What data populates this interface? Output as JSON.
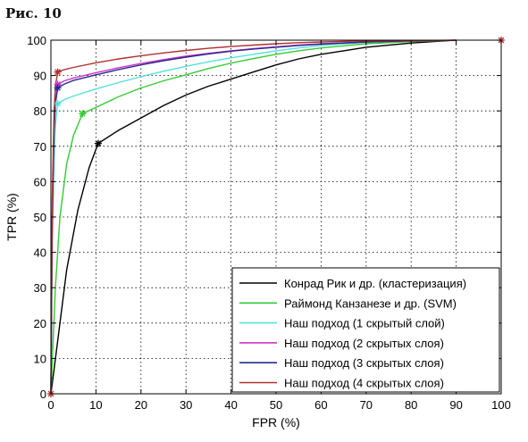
{
  "figure_label": "Рис. 10",
  "chart_data": {
    "type": "line",
    "xlabel": "FPR (%)",
    "ylabel": "TPR (%)",
    "xlim": [
      0,
      100
    ],
    "ylim": [
      0,
      100
    ],
    "xticks": [
      0,
      10,
      20,
      30,
      40,
      50,
      60,
      70,
      80,
      90,
      100
    ],
    "yticks": [
      0,
      10,
      20,
      30,
      40,
      50,
      60,
      70,
      80,
      90,
      100
    ],
    "grid": true,
    "legend_position": "bottom-right",
    "series": [
      {
        "name": "Конрад Рик и др. (кластеризация)",
        "color": "#000000",
        "marker": {
          "x": 10.5,
          "y": 70.8
        },
        "points": [
          [
            0,
            0
          ],
          [
            1.5,
            15
          ],
          [
            3.5,
            35
          ],
          [
            6,
            52
          ],
          [
            8.5,
            64
          ],
          [
            10.5,
            70.8
          ],
          [
            15,
            74.5
          ],
          [
            20,
            78
          ],
          [
            25,
            81.5
          ],
          [
            30,
            84.5
          ],
          [
            35,
            87
          ],
          [
            40,
            89
          ],
          [
            45,
            91
          ],
          [
            50,
            93
          ],
          [
            55,
            94.7
          ],
          [
            60,
            96
          ],
          [
            65,
            97
          ],
          [
            70,
            98
          ],
          [
            80,
            99.2
          ],
          [
            90,
            100
          ]
        ]
      },
      {
        "name": "Раймонд Канзанезе и др. (SVM)",
        "color": "#33cc33",
        "marker": {
          "x": 7,
          "y": 79.2
        },
        "points": [
          [
            0,
            0
          ],
          [
            1,
            30
          ],
          [
            2,
            50
          ],
          [
            3.5,
            65
          ],
          [
            5,
            73
          ],
          [
            7,
            79.2
          ],
          [
            10,
            81
          ],
          [
            15,
            84
          ],
          [
            20,
            86.5
          ],
          [
            25,
            88.5
          ],
          [
            30,
            90.2
          ],
          [
            35,
            92
          ],
          [
            40,
            93.5
          ],
          [
            45,
            94.8
          ],
          [
            50,
            96
          ],
          [
            55,
            97
          ],
          [
            60,
            97.8
          ],
          [
            70,
            99
          ],
          [
            80,
            99.6
          ],
          [
            90,
            100
          ]
        ]
      },
      {
        "name": "Наш подход (1 скрытый слой)",
        "color": "#55e0e0",
        "marker": {
          "x": 1.5,
          "y": 82
        },
        "points": [
          [
            0,
            0
          ],
          [
            0.3,
            40
          ],
          [
            0.7,
            65
          ],
          [
            1,
            76
          ],
          [
            1.5,
            82
          ],
          [
            3,
            83.2
          ],
          [
            5,
            84.2
          ],
          [
            10,
            86.2
          ],
          [
            15,
            88
          ],
          [
            20,
            89.7
          ],
          [
            25,
            91.2
          ],
          [
            30,
            92.6
          ],
          [
            35,
            93.9
          ],
          [
            40,
            95
          ],
          [
            45,
            96
          ],
          [
            50,
            97
          ],
          [
            55,
            97.8
          ],
          [
            60,
            98.5
          ],
          [
            70,
            99.4
          ],
          [
            80,
            99.8
          ],
          [
            90,
            100
          ]
        ]
      },
      {
        "name": "Наш подход (2 скрытых слоя)",
        "color": "#cc33cc",
        "marker": {
          "x": 1.5,
          "y": 87.5
        },
        "points": [
          [
            0,
            0
          ],
          [
            0.3,
            50
          ],
          [
            0.7,
            75
          ],
          [
            1,
            83
          ],
          [
            1.5,
            87.5
          ],
          [
            3,
            88.5
          ],
          [
            5,
            89.3
          ],
          [
            10,
            90.8
          ],
          [
            15,
            92.2
          ],
          [
            20,
            93.4
          ],
          [
            25,
            94.5
          ],
          [
            30,
            95.5
          ],
          [
            35,
            96.3
          ],
          [
            40,
            97
          ],
          [
            45,
            97.6
          ],
          [
            50,
            98.1
          ],
          [
            55,
            98.6
          ],
          [
            60,
            99
          ],
          [
            70,
            99.5
          ],
          [
            80,
            99.8
          ],
          [
            90,
            100
          ]
        ]
      },
      {
        "name": "Наш подход (3 скрытых слоя)",
        "color": "#2a2a8a",
        "marker": {
          "x": 1.5,
          "y": 86.5
        },
        "points": [
          [
            0,
            0
          ],
          [
            0.3,
            50
          ],
          [
            0.7,
            74
          ],
          [
            1,
            82
          ],
          [
            1.5,
            86.5
          ],
          [
            3,
            87.6
          ],
          [
            5,
            88.6
          ],
          [
            10,
            90.2
          ],
          [
            15,
            91.7
          ],
          [
            20,
            93
          ],
          [
            25,
            94.2
          ],
          [
            30,
            95.2
          ],
          [
            35,
            96.1
          ],
          [
            40,
            96.9
          ],
          [
            45,
            97.5
          ],
          [
            50,
            98
          ],
          [
            55,
            98.5
          ],
          [
            60,
            98.9
          ],
          [
            70,
            99.5
          ],
          [
            80,
            99.8
          ],
          [
            90,
            100
          ]
        ]
      },
      {
        "name": "Наш подход (4 скрытых слоя)",
        "color": "#b03030",
        "marker": {
          "x": 1.5,
          "y": 91
        },
        "points": [
          [
            0,
            0
          ],
          [
            0.3,
            55
          ],
          [
            0.7,
            80
          ],
          [
            1,
            87
          ],
          [
            1.5,
            91
          ],
          [
            3,
            91.7
          ],
          [
            5,
            92.3
          ],
          [
            10,
            93.6
          ],
          [
            15,
            94.7
          ],
          [
            20,
            95.6
          ],
          [
            25,
            96.4
          ],
          [
            30,
            97.1
          ],
          [
            35,
            97.7
          ],
          [
            40,
            98.2
          ],
          [
            45,
            98.6
          ],
          [
            50,
            99
          ],
          [
            55,
            99.3
          ],
          [
            60,
            99.5
          ],
          [
            70,
            99.8
          ],
          [
            80,
            99.9
          ],
          [
            90,
            100
          ]
        ]
      }
    ],
    "extra_markers": [
      {
        "x": 100,
        "y": 100,
        "color": "#b03030"
      },
      {
        "x": 0,
        "y": 0,
        "color": "#b03030"
      }
    ]
  }
}
